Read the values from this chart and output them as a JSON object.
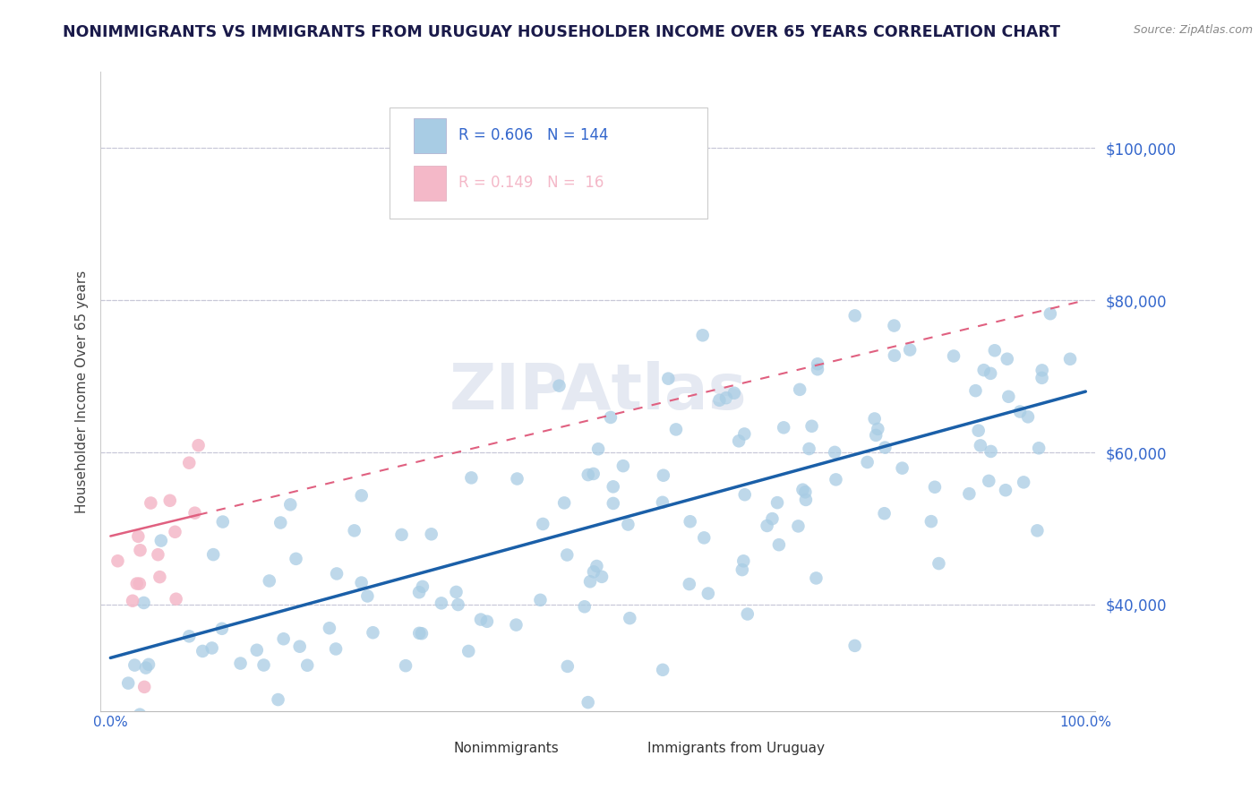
{
  "title": "NONIMMIGRANTS VS IMMIGRANTS FROM URUGUAY HOUSEHOLDER INCOME OVER 65 YEARS CORRELATION CHART",
  "source": "Source: ZipAtlas.com",
  "ylabel": "Householder Income Over 65 years",
  "watermark": "ZIPAtlas",
  "xlim": [
    -0.01,
    1.01
  ],
  "ylim": [
    26000,
    110000
  ],
  "yticks": [
    40000,
    60000,
    80000,
    100000
  ],
  "ytick_labels": [
    "$40,000",
    "$60,000",
    "$80,000",
    "$100,000"
  ],
  "nonimm_color": "#a8cce4",
  "imm_color": "#f4b8c8",
  "trend_blue": "#1a5fa8",
  "trend_pink": "#e06080",
  "title_color": "#1a1a4a",
  "axis_label_color": "#444444",
  "tick_color": "#3366cc",
  "grid_color": "#c8c8d8",
  "background_color": "#ffffff",
  "legend_r1": "R = 0.606",
  "legend_n1": "N = 144",
  "legend_r2": "R = 0.149",
  "legend_n2": "N =  16",
  "blue_line_x0": 0.0,
  "blue_line_y0": 33000,
  "blue_line_x1": 1.0,
  "blue_line_y1": 68000,
  "pink_line_x0": 0.0,
  "pink_line_y0": 49000,
  "pink_line_x1": 1.0,
  "pink_line_y1": 80000
}
